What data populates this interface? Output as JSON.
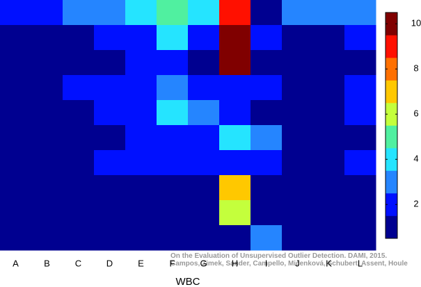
{
  "chart_data": {
    "type": "heatmap",
    "x_label": "WBC",
    "categories": [
      "A",
      "B",
      "C",
      "D",
      "E",
      "F",
      "G",
      "H",
      "I",
      "J",
      "K",
      "L"
    ],
    "values": [
      [
        2,
        2,
        3,
        3,
        4,
        5,
        4,
        9,
        1,
        3,
        3,
        3
      ],
      [
        1,
        1,
        1,
        2,
        2,
        4,
        2,
        10,
        2,
        1,
        1,
        2
      ],
      [
        1,
        1,
        1,
        1,
        2,
        2,
        1,
        10,
        1,
        1,
        1,
        1
      ],
      [
        1,
        1,
        2,
        2,
        2,
        3,
        2,
        2,
        2,
        1,
        1,
        2
      ],
      [
        1,
        1,
        1,
        2,
        2,
        4,
        3,
        2,
        1,
        1,
        1,
        2
      ],
      [
        1,
        1,
        1,
        1,
        2,
        2,
        2,
        4,
        3,
        1,
        1,
        1
      ],
      [
        1,
        1,
        1,
        2,
        2,
        2,
        2,
        2,
        2,
        1,
        1,
        2
      ],
      [
        1,
        1,
        1,
        1,
        1,
        1,
        1,
        7,
        1,
        1,
        1,
        1
      ],
      [
        1,
        1,
        1,
        1,
        1,
        1,
        1,
        6,
        1,
        1,
        1,
        1
      ],
      [
        1,
        1,
        1,
        1,
        1,
        1,
        1,
        1,
        3,
        1,
        1,
        1
      ]
    ],
    "colors": [
      "#000090",
      "#0010ff",
      "#2585ff",
      "#25e4ff",
      "#50f0a0",
      "#c4ff3c",
      "#ffc800",
      "#ff7000",
      "#ff1000",
      "#800000"
    ],
    "clim": [
      0.5,
      10.5
    ],
    "cticks": [
      2,
      4,
      6,
      8,
      10
    ],
    "annotations": [
      "On the Evaluation of Unsupervised Outlier Detection. DAMI, 2015.",
      "Campos, Zimek, Sander, Campello, Micenková, Schubert, Assent, Houle"
    ]
  }
}
